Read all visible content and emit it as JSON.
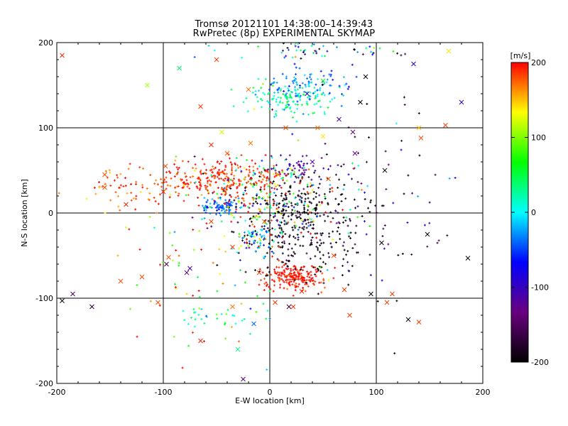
{
  "chart_data": {
    "type": "scatter",
    "title": "Tromsø 20121101 14:38:00–14:39:43",
    "subtitle": "RwPretec (8p) EXPERIMENTAL SKYMAP",
    "xlabel": "E-W location [km]",
    "ylabel": "N-S location [km]",
    "xlim": [
      -200,
      200
    ],
    "ylim": [
      -200,
      200
    ],
    "xticks": [
      "-200",
      "-100",
      "0",
      "100",
      "200"
    ],
    "yticks": [
      "-200",
      "-100",
      "0",
      "100",
      "200"
    ],
    "grid": true,
    "colorbar": {
      "label": "[m/s]",
      "range": [
        -200,
        200
      ],
      "ticks": [
        "200",
        "100",
        "0",
        "-100",
        "-200"
      ],
      "colormap": [
        "#000000",
        "#6a0080",
        "#0000ff",
        "#00ffff",
        "#00ff00",
        "#ffff00",
        "#ff0000"
      ]
    },
    "clusters": [
      {
        "name": "red-west",
        "center": [
          -45,
          40
        ],
        "spread": [
          30,
          12
        ],
        "count": 260,
        "velocity": 190,
        "vspread": 15
      },
      {
        "name": "red-far-west",
        "center": [
          -130,
          28
        ],
        "spread": [
          30,
          12
        ],
        "count": 70,
        "velocity": 180,
        "vspread": 20
      },
      {
        "name": "red-south",
        "center": [
          22,
          -75
        ],
        "spread": [
          13,
          8
        ],
        "count": 200,
        "velocity": 195,
        "vspread": 10
      },
      {
        "name": "green-north",
        "center": [
          20,
          135
        ],
        "spread": [
          22,
          10
        ],
        "count": 150,
        "velocity": 20,
        "vspread": 25
      },
      {
        "name": "cyan-north",
        "center": [
          40,
          150
        ],
        "spread": [
          25,
          10
        ],
        "count": 80,
        "velocity": -35,
        "vspread": 20
      },
      {
        "name": "cyan-west-center",
        "center": [
          -45,
          8
        ],
        "spread": [
          8,
          6
        ],
        "count": 90,
        "velocity": -35,
        "vspread": 20
      },
      {
        "name": "black-east-center",
        "center": [
          25,
          10
        ],
        "spread": [
          28,
          18
        ],
        "count": 200,
        "velocity": -195,
        "vspread": 10
      },
      {
        "name": "black-southeast",
        "center": [
          30,
          -35
        ],
        "spread": [
          30,
          20
        ],
        "count": 170,
        "velocity": -190,
        "vspread": 15
      },
      {
        "name": "mixed-center",
        "center": [
          0,
          20
        ],
        "spread": [
          35,
          25
        ],
        "count": 220,
        "velocity": 60,
        "vspread": 120
      },
      {
        "name": "blue-center",
        "center": [
          25,
          55
        ],
        "spread": [
          15,
          8
        ],
        "count": 50,
        "velocity": -110,
        "vspread": 20
      },
      {
        "name": "teal-south",
        "center": [
          -10,
          -30
        ],
        "spread": [
          10,
          10
        ],
        "count": 60,
        "velocity": -20,
        "vspread": 40
      },
      {
        "name": "sparse-east",
        "center": [
          100,
          10
        ],
        "spread": [
          45,
          70
        ],
        "count": 90,
        "velocity": -150,
        "vspread": 70
      },
      {
        "name": "sparse-outer",
        "center": [
          -40,
          -60
        ],
        "spread": [
          60,
          60
        ],
        "count": 100,
        "velocity": 120,
        "vspread": 90
      },
      {
        "name": "north-band",
        "center": [
          40,
          190
        ],
        "spread": [
          50,
          8
        ],
        "count": 60,
        "velocity": -60,
        "vspread": 120
      },
      {
        "name": "green-southwest",
        "center": [
          -50,
          -120
        ],
        "spread": [
          20,
          10
        ],
        "count": 30,
        "velocity": 30,
        "vspread": 40
      }
    ],
    "crosses": [
      [
        -195,
        185,
        190
      ],
      [
        -195,
        -103,
        -190
      ],
      [
        -185,
        -95,
        -150
      ],
      [
        -167,
        -110,
        -170
      ],
      [
        -155,
        30,
        180
      ],
      [
        -155,
        45,
        180
      ],
      [
        -140,
        -80,
        180
      ],
      [
        -135,
        10,
        190
      ],
      [
        -120,
        -75,
        180
      ],
      [
        -115,
        150,
        110
      ],
      [
        -105,
        -105,
        180
      ],
      [
        -100,
        25,
        190
      ],
      [
        -98,
        55,
        180
      ],
      [
        -97,
        -60,
        -160
      ],
      [
        -95,
        -52,
        180
      ],
      [
        -85,
        170,
        40
      ],
      [
        -78,
        -70,
        -140
      ],
      [
        -75,
        -65,
        -110
      ],
      [
        -65,
        125,
        185
      ],
      [
        -65,
        -150,
        190
      ],
      [
        -50,
        180,
        185
      ],
      [
        -55,
        80,
        190
      ],
      [
        -55,
        -10,
        185
      ],
      [
        -45,
        95,
        120
      ],
      [
        -40,
        70,
        180
      ],
      [
        -35,
        -40,
        185
      ],
      [
        -35,
        -110,
        170
      ],
      [
        -30,
        -160,
        30
      ],
      [
        -25,
        -195,
        -140
      ],
      [
        -20,
        145,
        170
      ],
      [
        -18,
        82,
        170
      ],
      [
        -15,
        -130,
        -40
      ],
      [
        -10,
        -70,
        185
      ],
      [
        -5,
        -10,
        180
      ],
      [
        5,
        -105,
        185
      ],
      [
        8,
        45,
        170
      ],
      [
        15,
        100,
        180
      ],
      [
        18,
        -110,
        -170
      ],
      [
        22,
        -110,
        185
      ],
      [
        25,
        200,
        40
      ],
      [
        30,
        -92,
        190
      ],
      [
        35,
        140,
        -110
      ],
      [
        40,
        60,
        -120
      ],
      [
        45,
        100,
        170
      ],
      [
        50,
        155,
        60
      ],
      [
        50,
        90,
        140
      ],
      [
        55,
        40,
        180
      ],
      [
        60,
        -50,
        180
      ],
      [
        65,
        110,
        -110
      ],
      [
        70,
        -90,
        185
      ],
      [
        75,
        -120,
        185
      ],
      [
        78,
        95,
        -140
      ],
      [
        80,
        70,
        -130
      ],
      [
        85,
        130,
        -190
      ],
      [
        90,
        160,
        -190
      ],
      [
        95,
        -95,
        -190
      ],
      [
        105,
        -35,
        -190
      ],
      [
        108,
        50,
        -180
      ],
      [
        110,
        -105,
        185
      ],
      [
        115,
        -95,
        185
      ],
      [
        130,
        -125,
        -190
      ],
      [
        140,
        -128,
        185
      ],
      [
        142,
        88,
        180
      ],
      [
        140,
        100,
        150
      ],
      [
        148,
        -25,
        -190
      ],
      [
        165,
        103,
        185
      ],
      [
        180,
        130,
        -110
      ],
      [
        186,
        -53,
        -190
      ],
      [
        168,
        190,
        140
      ],
      [
        135,
        175,
        -100
      ]
    ]
  }
}
